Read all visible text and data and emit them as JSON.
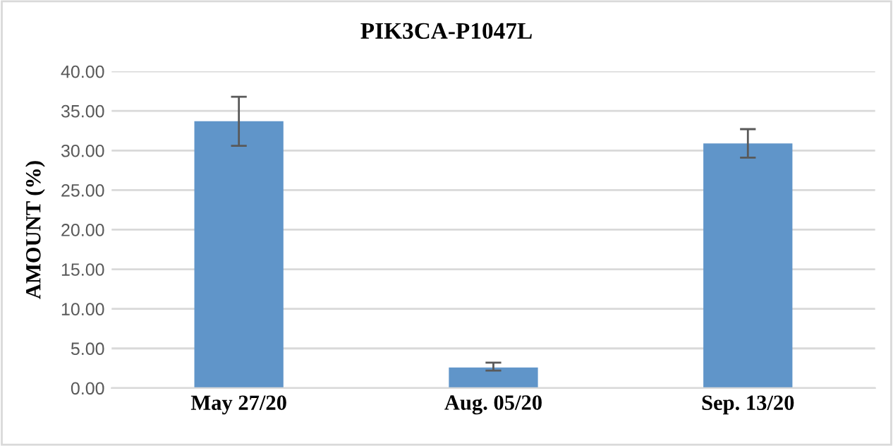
{
  "chart_data": {
    "type": "bar",
    "title": "PIK3CA-P1047L",
    "ylabel": "AMOUNT (%)",
    "categories": [
      "May 27/20",
      "Aug. 05/20",
      "Sep. 13/20"
    ],
    "values": [
      33.7,
      2.6,
      30.9
    ],
    "errors": [
      [
        30.6,
        36.8
      ],
      [
        2.2,
        3.2
      ],
      [
        29.1,
        32.7
      ]
    ],
    "color": "#6095c9",
    "ylim": [
      0,
      40
    ],
    "yticks": [
      {
        "value": 0,
        "label": "0.00"
      },
      {
        "value": 5,
        "label": "5.00"
      },
      {
        "value": 10,
        "label": "10.00"
      },
      {
        "value": 15,
        "label": "15.00"
      },
      {
        "value": 20,
        "label": "20.00"
      },
      {
        "value": 25,
        "label": "25.00"
      },
      {
        "value": 30,
        "label": "30.00"
      },
      {
        "value": 35,
        "label": "35.00"
      },
      {
        "value": 40,
        "label": "40.00"
      }
    ],
    "grid": "y",
    "legend": false
  }
}
